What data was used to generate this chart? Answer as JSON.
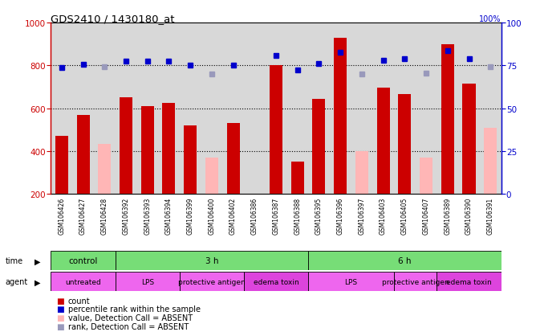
{
  "title": "GDS2410 / 1430180_at",
  "samples": [
    "GSM106426",
    "GSM106427",
    "GSM106428",
    "GSM106392",
    "GSM106393",
    "GSM106394",
    "GSM106399",
    "GSM106400",
    "GSM106402",
    "GSM106386",
    "GSM106387",
    "GSM106388",
    "GSM106395",
    "GSM106396",
    "GSM106397",
    "GSM106403",
    "GSM106405",
    "GSM106407",
    "GSM106389",
    "GSM106390",
    "GSM106391"
  ],
  "count_values": [
    470,
    570,
    null,
    650,
    610,
    625,
    520,
    null,
    530,
    null,
    800,
    350,
    645,
    930,
    null,
    695,
    665,
    null,
    900,
    715,
    null
  ],
  "count_absent": [
    null,
    null,
    435,
    null,
    null,
    null,
    null,
    370,
    null,
    null,
    null,
    null,
    null,
    null,
    400,
    null,
    null,
    370,
    null,
    null,
    510
  ],
  "rank_values": [
    790,
    805,
    null,
    820,
    820,
    820,
    800,
    null,
    800,
    null,
    845,
    780,
    810,
    860,
    null,
    825,
    830,
    null,
    870,
    830,
    null
  ],
  "rank_absent": [
    null,
    null,
    795,
    null,
    null,
    null,
    null,
    760,
    null,
    null,
    null,
    null,
    null,
    null,
    760,
    null,
    null,
    765,
    null,
    null,
    795
  ],
  "bar_color_count": "#cc0000",
  "bar_color_absent": "#ffb6b6",
  "dot_color_rank": "#0000cc",
  "dot_color_rank_absent": "#9999bb",
  "ylim_left": [
    200,
    1000
  ],
  "ylim_right": [
    0,
    100
  ],
  "yticks_left": [
    200,
    400,
    600,
    800,
    1000
  ],
  "yticks_right": [
    0,
    25,
    50,
    75,
    100
  ],
  "bg_plot": "#d8d8d8",
  "bg_fig": "#ffffff",
  "time_blocks": [
    {
      "label": "control",
      "start": 0,
      "end": 3,
      "color": "#77dd77"
    },
    {
      "label": "3 h",
      "start": 3,
      "end": 12,
      "color": "#77dd77"
    },
    {
      "label": "6 h",
      "start": 12,
      "end": 21,
      "color": "#77dd77"
    }
  ],
  "agent_blocks": [
    {
      "label": "untreated",
      "start": 0,
      "end": 3,
      "color": "#ee66ee"
    },
    {
      "label": "LPS",
      "start": 3,
      "end": 6,
      "color": "#ee66ee"
    },
    {
      "label": "protective antigen",
      "start": 6,
      "end": 9,
      "color": "#ee66ee"
    },
    {
      "label": "edema toxin",
      "start": 9,
      "end": 12,
      "color": "#dd44dd"
    },
    {
      "label": "LPS",
      "start": 12,
      "end": 16,
      "color": "#ee66ee"
    },
    {
      "label": "protective antigen",
      "start": 16,
      "end": 18,
      "color": "#ee66ee"
    },
    {
      "label": "edema toxin",
      "start": 18,
      "end": 21,
      "color": "#dd44dd"
    }
  ],
  "legend_items": [
    {
      "color": "#cc0000",
      "label": "count"
    },
    {
      "color": "#0000cc",
      "label": "percentile rank within the sample"
    },
    {
      "color": "#ffb6b6",
      "label": "value, Detection Call = ABSENT"
    },
    {
      "color": "#9999bb",
      "label": "rank, Detection Call = ABSENT"
    }
  ]
}
